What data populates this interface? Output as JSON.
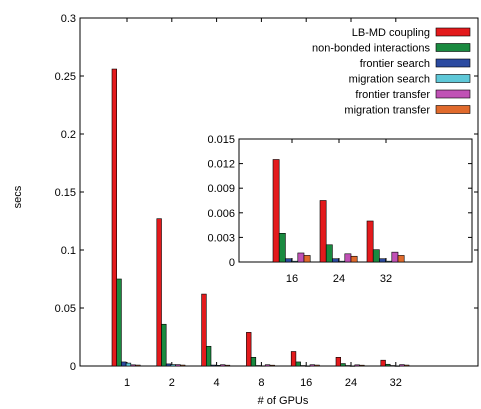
{
  "chart_data": [
    {
      "type": "bar",
      "xlabel": "# of GPUs",
      "ylabel": "secs",
      "ylim": [
        0,
        0.3
      ],
      "yticks": [
        "0",
        "0.05",
        "0.1",
        "0.15",
        "0.2",
        "0.25",
        "0.3"
      ],
      "categories": [
        "1",
        "2",
        "4",
        "8",
        "16",
        "24",
        "32"
      ],
      "legend_position": "top-right",
      "series": [
        {
          "name": "LB-MD coupling",
          "color": "#e31a1c",
          "values": [
            0.256,
            0.127,
            0.062,
            0.029,
            0.0125,
            0.0075,
            0.005
          ]
        },
        {
          "name": "non-bonded interactions",
          "color": "#1a8a40",
          "values": [
            0.075,
            0.036,
            0.017,
            0.0075,
            0.0035,
            0.0021,
            0.0015
          ]
        },
        {
          "name": "frontier search",
          "color": "#2b4aa0",
          "values": [
            0.0035,
            0.0018,
            0.0008,
            0.0004,
            0.0004,
            0.0004,
            0.0004
          ]
        },
        {
          "name": "migration search",
          "color": "#5ec8d8",
          "values": [
            0.0025,
            0.0012,
            0.0006,
            0.0002,
            0.0001,
            0.0001,
            0.0001
          ]
        },
        {
          "name": "frontier transfer",
          "color": "#c051b5",
          "values": [
            0.001,
            0.0012,
            0.0011,
            0.0011,
            0.0011,
            0.001,
            0.0012
          ]
        },
        {
          "name": "migration transfer",
          "color": "#e06a2c",
          "values": [
            0.0008,
            0.0008,
            0.0007,
            0.0007,
            0.0008,
            0.0007,
            0.0008
          ]
        }
      ]
    },
    {
      "type": "bar",
      "inset": true,
      "ylim": [
        0,
        0.015
      ],
      "yticks": [
        "0",
        "0.003",
        "0.006",
        "0.009",
        "0.012",
        "0.015"
      ],
      "categories": [
        "16",
        "24",
        "32"
      ],
      "series": [
        {
          "name": "LB-MD coupling",
          "color": "#e31a1c",
          "values": [
            0.0125,
            0.0075,
            0.005
          ]
        },
        {
          "name": "non-bonded interactions",
          "color": "#1a8a40",
          "values": [
            0.0035,
            0.0021,
            0.0015
          ]
        },
        {
          "name": "frontier search",
          "color": "#2b4aa0",
          "values": [
            0.0004,
            0.0004,
            0.0004
          ]
        },
        {
          "name": "migration search",
          "color": "#5ec8d8",
          "values": [
            0.0001,
            0.0001,
            0.0001
          ]
        },
        {
          "name": "frontier transfer",
          "color": "#c051b5",
          "values": [
            0.0011,
            0.001,
            0.0012
          ]
        },
        {
          "name": "migration transfer",
          "color": "#e06a2c",
          "values": [
            0.0008,
            0.0007,
            0.0008
          ]
        }
      ]
    }
  ]
}
